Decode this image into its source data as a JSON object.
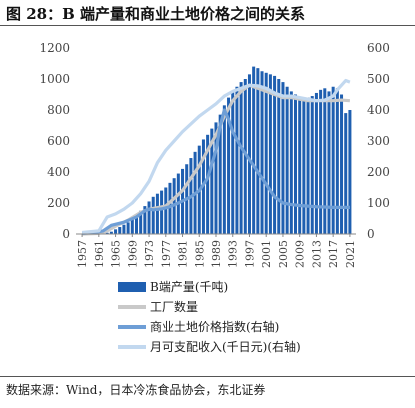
{
  "figure": {
    "title": "图 28：B 端产量和商业土地价格之间的关系",
    "source": "数据来源：Wind，日本冷冻食品协会，东北证券"
  },
  "colors": {
    "bars": "#1f5fb0",
    "factories": "#c9c9c9",
    "land_price": "#6e9ed6",
    "income": "#c2d8ef"
  },
  "chart_data": {
    "type": "bar",
    "x_start": 1957,
    "x_end": 2021,
    "x_ticks": [
      1957,
      1961,
      1965,
      1969,
      1973,
      1977,
      1981,
      1985,
      1989,
      1993,
      1997,
      2001,
      2005,
      2009,
      2013,
      2017,
      2021
    ],
    "y_left": {
      "lim": [
        0,
        1200
      ],
      "ticks": [
        0,
        200,
        400,
        600,
        800,
        1000,
        1200
      ]
    },
    "y_right": {
      "lim": [
        0,
        600
      ],
      "ticks": [
        0,
        100,
        200,
        300,
        400,
        500,
        600
      ]
    },
    "grid": false,
    "legend_position": "bottom",
    "series": [
      {
        "name": "B端产量(千吨)",
        "kind": "bar",
        "axis": "left",
        "values": [
          0,
          0,
          1,
          2,
          3,
          5,
          8,
          15,
          30,
          45,
          60,
          75,
          95,
          120,
          150,
          180,
          210,
          240,
          260,
          280,
          300,
          330,
          360,
          390,
          420,
          450,
          490,
          530,
          570,
          610,
          640,
          680,
          720,
          770,
          830,
          880,
          920,
          950,
          980,
          1000,
          1030,
          1080,
          1070,
          1050,
          1040,
          1030,
          1020,
          1000,
          980,
          950,
          920,
          900,
          880,
          870,
          880,
          890,
          910,
          930,
          940,
          920,
          950,
          940,
          900,
          780,
          800
        ]
      },
      {
        "name": "工厂数量",
        "kind": "line",
        "axis": "right",
        "points": [
          [
            1957,
            0
          ],
          [
            1961,
            2
          ],
          [
            1963,
            10
          ],
          [
            1965,
            25
          ],
          [
            1968,
            45
          ],
          [
            1971,
            70
          ],
          [
            1973,
            80
          ],
          [
            1977,
            90
          ],
          [
            1981,
            140
          ],
          [
            1985,
            220
          ],
          [
            1989,
            320
          ],
          [
            1991,
            380
          ],
          [
            1993,
            430
          ],
          [
            1995,
            460
          ],
          [
            1997,
            480
          ],
          [
            1999,
            470
          ],
          [
            2001,
            460
          ],
          [
            2003,
            450
          ],
          [
            2005,
            440
          ],
          [
            2007,
            440
          ],
          [
            2009,
            435
          ],
          [
            2011,
            430
          ],
          [
            2013,
            430
          ],
          [
            2015,
            430
          ],
          [
            2017,
            430
          ],
          [
            2019,
            432
          ],
          [
            2021,
            430
          ]
        ]
      },
      {
        "name": "商业土地价格指数(右轴)",
        "kind": "line",
        "axis": "right",
        "points": [
          [
            1957,
            2
          ],
          [
            1960,
            5
          ],
          [
            1962,
            10
          ],
          [
            1964,
            28
          ],
          [
            1967,
            38
          ],
          [
            1970,
            55
          ],
          [
            1972,
            75
          ],
          [
            1973,
            80
          ],
          [
            1974,
            78
          ],
          [
            1976,
            81
          ],
          [
            1978,
            88
          ],
          [
            1980,
            100
          ],
          [
            1983,
            120
          ],
          [
            1985,
            140
          ],
          [
            1987,
            180
          ],
          [
            1989,
            270
          ],
          [
            1990,
            350
          ],
          [
            1991,
            400
          ],
          [
            1992,
            370
          ],
          [
            1993,
            330
          ],
          [
            1995,
            280
          ],
          [
            1997,
            240
          ],
          [
            1999,
            200
          ],
          [
            2001,
            160
          ],
          [
            2003,
            120
          ],
          [
            2005,
            100
          ],
          [
            2007,
            95
          ],
          [
            2009,
            92
          ],
          [
            2011,
            90
          ],
          [
            2013,
            88
          ],
          [
            2015,
            87
          ],
          [
            2017,
            86
          ],
          [
            2019,
            86
          ],
          [
            2021,
            86
          ]
        ]
      },
      {
        "name": "月可支配收入(千日元)(右轴)",
        "kind": "line",
        "axis": "right",
        "points": [
          [
            1957,
            5
          ],
          [
            1961,
            10
          ],
          [
            1963,
            55
          ],
          [
            1965,
            65
          ],
          [
            1967,
            80
          ],
          [
            1969,
            100
          ],
          [
            1971,
            130
          ],
          [
            1973,
            170
          ],
          [
            1975,
            230
          ],
          [
            1977,
            270
          ],
          [
            1979,
            300
          ],
          [
            1981,
            330
          ],
          [
            1983,
            355
          ],
          [
            1985,
            380
          ],
          [
            1987,
            400
          ],
          [
            1989,
            420
          ],
          [
            1991,
            445
          ],
          [
            1993,
            460
          ],
          [
            1995,
            470
          ],
          [
            1997,
            480
          ],
          [
            1999,
            478
          ],
          [
            2001,
            470
          ],
          [
            2003,
            455
          ],
          [
            2005,
            445
          ],
          [
            2007,
            445
          ],
          [
            2009,
            440
          ],
          [
            2011,
            435
          ],
          [
            2013,
            430
          ],
          [
            2015,
            432
          ],
          [
            2017,
            445
          ],
          [
            2018,
            465
          ],
          [
            2019,
            480
          ],
          [
            2020,
            495
          ],
          [
            2021,
            490
          ]
        ]
      }
    ]
  }
}
